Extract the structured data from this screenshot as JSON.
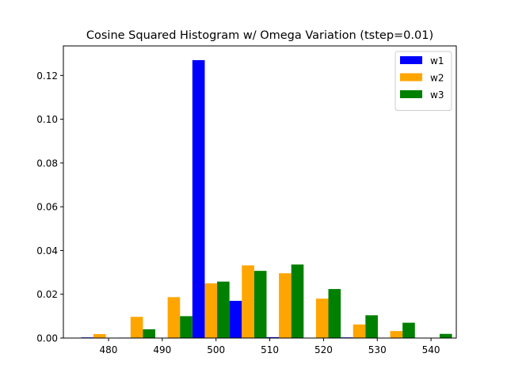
{
  "chart_data": {
    "type": "bar",
    "title": "Cosine Squared Histogram w/ Omega Variation (tstep=0.01)",
    "xlabel": "",
    "ylabel": "",
    "xlim": [
      471.6,
      544.7
    ],
    "ylim": [
      0,
      0.1335
    ],
    "x_ticks": [
      480,
      490,
      500,
      510,
      520,
      530,
      540
    ],
    "y_ticks": [
      0.0,
      0.02,
      0.04,
      0.06,
      0.08,
      0.1,
      0.12
    ],
    "y_tick_format": 2,
    "bin_width": 6.9,
    "bar_width": 2.3,
    "legend_position": "upper right",
    "grid": false,
    "series": [
      {
        "name": "w1",
        "color": "#0000ff",
        "x": [
          474.9,
          481.8,
          488.7,
          495.6,
          502.5,
          509.4,
          516.3,
          523.2,
          530.1,
          537.0
        ],
        "values": [
          0.0003,
          0.0002,
          0.0,
          0.127,
          0.017,
          0.0004,
          0.0,
          0.0003,
          0.0,
          0.0
        ]
      },
      {
        "name": "w2",
        "color": "#ffa500",
        "x": [
          474.9,
          481.8,
          488.7,
          495.6,
          502.5,
          509.4,
          516.3,
          523.2,
          530.1,
          537.0
        ],
        "values": [
          0.0018,
          0.0097,
          0.0187,
          0.025,
          0.0332,
          0.0296,
          0.018,
          0.0062,
          0.0032,
          0.0
        ]
      },
      {
        "name": "w3",
        "color": "#008000",
        "x": [
          474.9,
          481.8,
          488.7,
          495.6,
          502.5,
          509.4,
          516.3,
          523.2,
          530.1,
          537.0
        ],
        "values": [
          0.0,
          0.004,
          0.01,
          0.0258,
          0.0307,
          0.0336,
          0.0224,
          0.0104,
          0.007,
          0.0019
        ]
      }
    ]
  }
}
